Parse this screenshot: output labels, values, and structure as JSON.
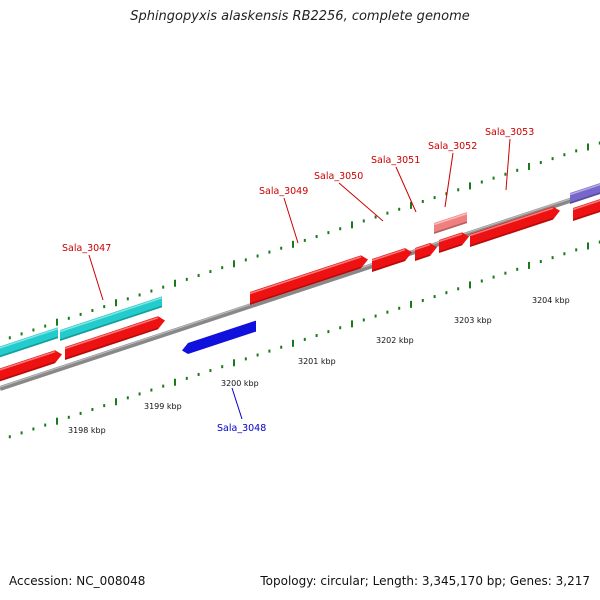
{
  "title": "Sphingopyxis alaskensis RB2256, complete genome",
  "footer": {
    "accession": "Accession: NC_008048",
    "summary": "Topology: circular; Length: 3,345,170 bp; Genes: 3,217"
  },
  "colors": {
    "forward_gene": "#ee1111",
    "reverse_gene": "#1111dd",
    "cds_cyan": "#22cccc",
    "light_feature": "#f08080",
    "purple_feature": "#7766cc",
    "backbone": "#888888",
    "tick": "#1a7a1a",
    "label_forward": "#cc0000",
    "label_reverse": "#0000cc"
  },
  "ticks": [
    {
      "label": "3198 kbp"
    },
    {
      "label": "3199 kbp"
    },
    {
      "label": "3200 kbp"
    },
    {
      "label": "3201 kbp"
    },
    {
      "label": "3202 kbp"
    },
    {
      "label": "3203 kbp"
    },
    {
      "label": "3204 kbp"
    }
  ],
  "genes": [
    {
      "name": "Sala_3047",
      "strand": "forward"
    },
    {
      "name": "Sala_3048",
      "strand": "reverse"
    },
    {
      "name": "Sala_3049",
      "strand": "forward"
    },
    {
      "name": "Sala_3050",
      "strand": "forward"
    },
    {
      "name": "Sala_3051",
      "strand": "forward"
    },
    {
      "name": "Sala_3052",
      "strand": "forward"
    },
    {
      "name": "Sala_3053",
      "strand": "forward"
    }
  ]
}
